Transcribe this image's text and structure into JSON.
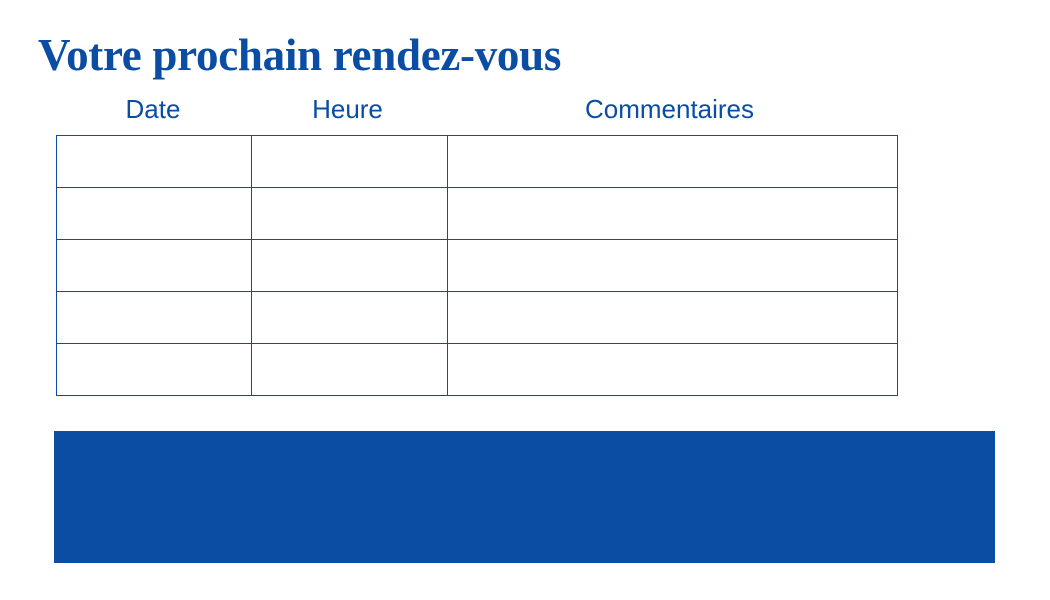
{
  "title": "Votre prochain rendez-vous",
  "table": {
    "columns": [
      "Date",
      "Heure",
      "Commentaires"
    ],
    "rows": [
      [
        "",
        "",
        ""
      ],
      [
        "",
        "",
        ""
      ],
      [
        "",
        "",
        ""
      ],
      [
        "",
        "",
        ""
      ],
      [
        "",
        "",
        ""
      ]
    ]
  },
  "colors": {
    "brand": "#0a4da2"
  }
}
